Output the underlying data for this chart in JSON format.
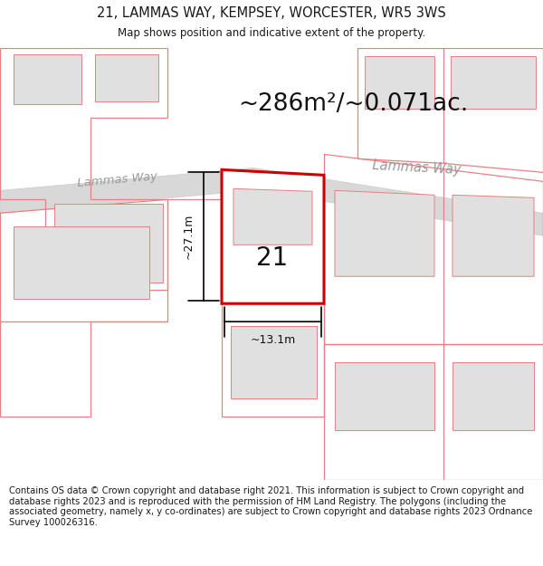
{
  "title": "21, LAMMAS WAY, KEMPSEY, WORCESTER, WR5 3WS",
  "subtitle": "Map shows position and indicative extent of the property.",
  "area_text": "~286m²/~0.071ac.",
  "label_number": "21",
  "dim_vertical": "~27.1m",
  "dim_horizontal": "~13.1m",
  "road_label_left": "Lammas Way",
  "road_label_right": "Lammas Way",
  "footer": "Contains OS data © Crown copyright and database right 2021. This information is subject to Crown copyright and database rights 2023 and is reproduced with the permission of HM Land Registry. The polygons (including the associated geometry, namely x, y co-ordinates) are subject to Crown copyright and database rights 2023 Ordnance Survey 100026316.",
  "bg_color": "#ffffff",
  "road_fill": "#d8d8d8",
  "plot_line_color": "#cc0000",
  "other_line_color": "#e88080",
  "building_fill": "#e0e0e0",
  "title_fontsize": 10.5,
  "subtitle_fontsize": 8.5,
  "area_fontsize": 19,
  "label_fontsize": 20,
  "road_fontsize": 9.5,
  "dim_fontsize": 9,
  "footer_fontsize": 7.2
}
